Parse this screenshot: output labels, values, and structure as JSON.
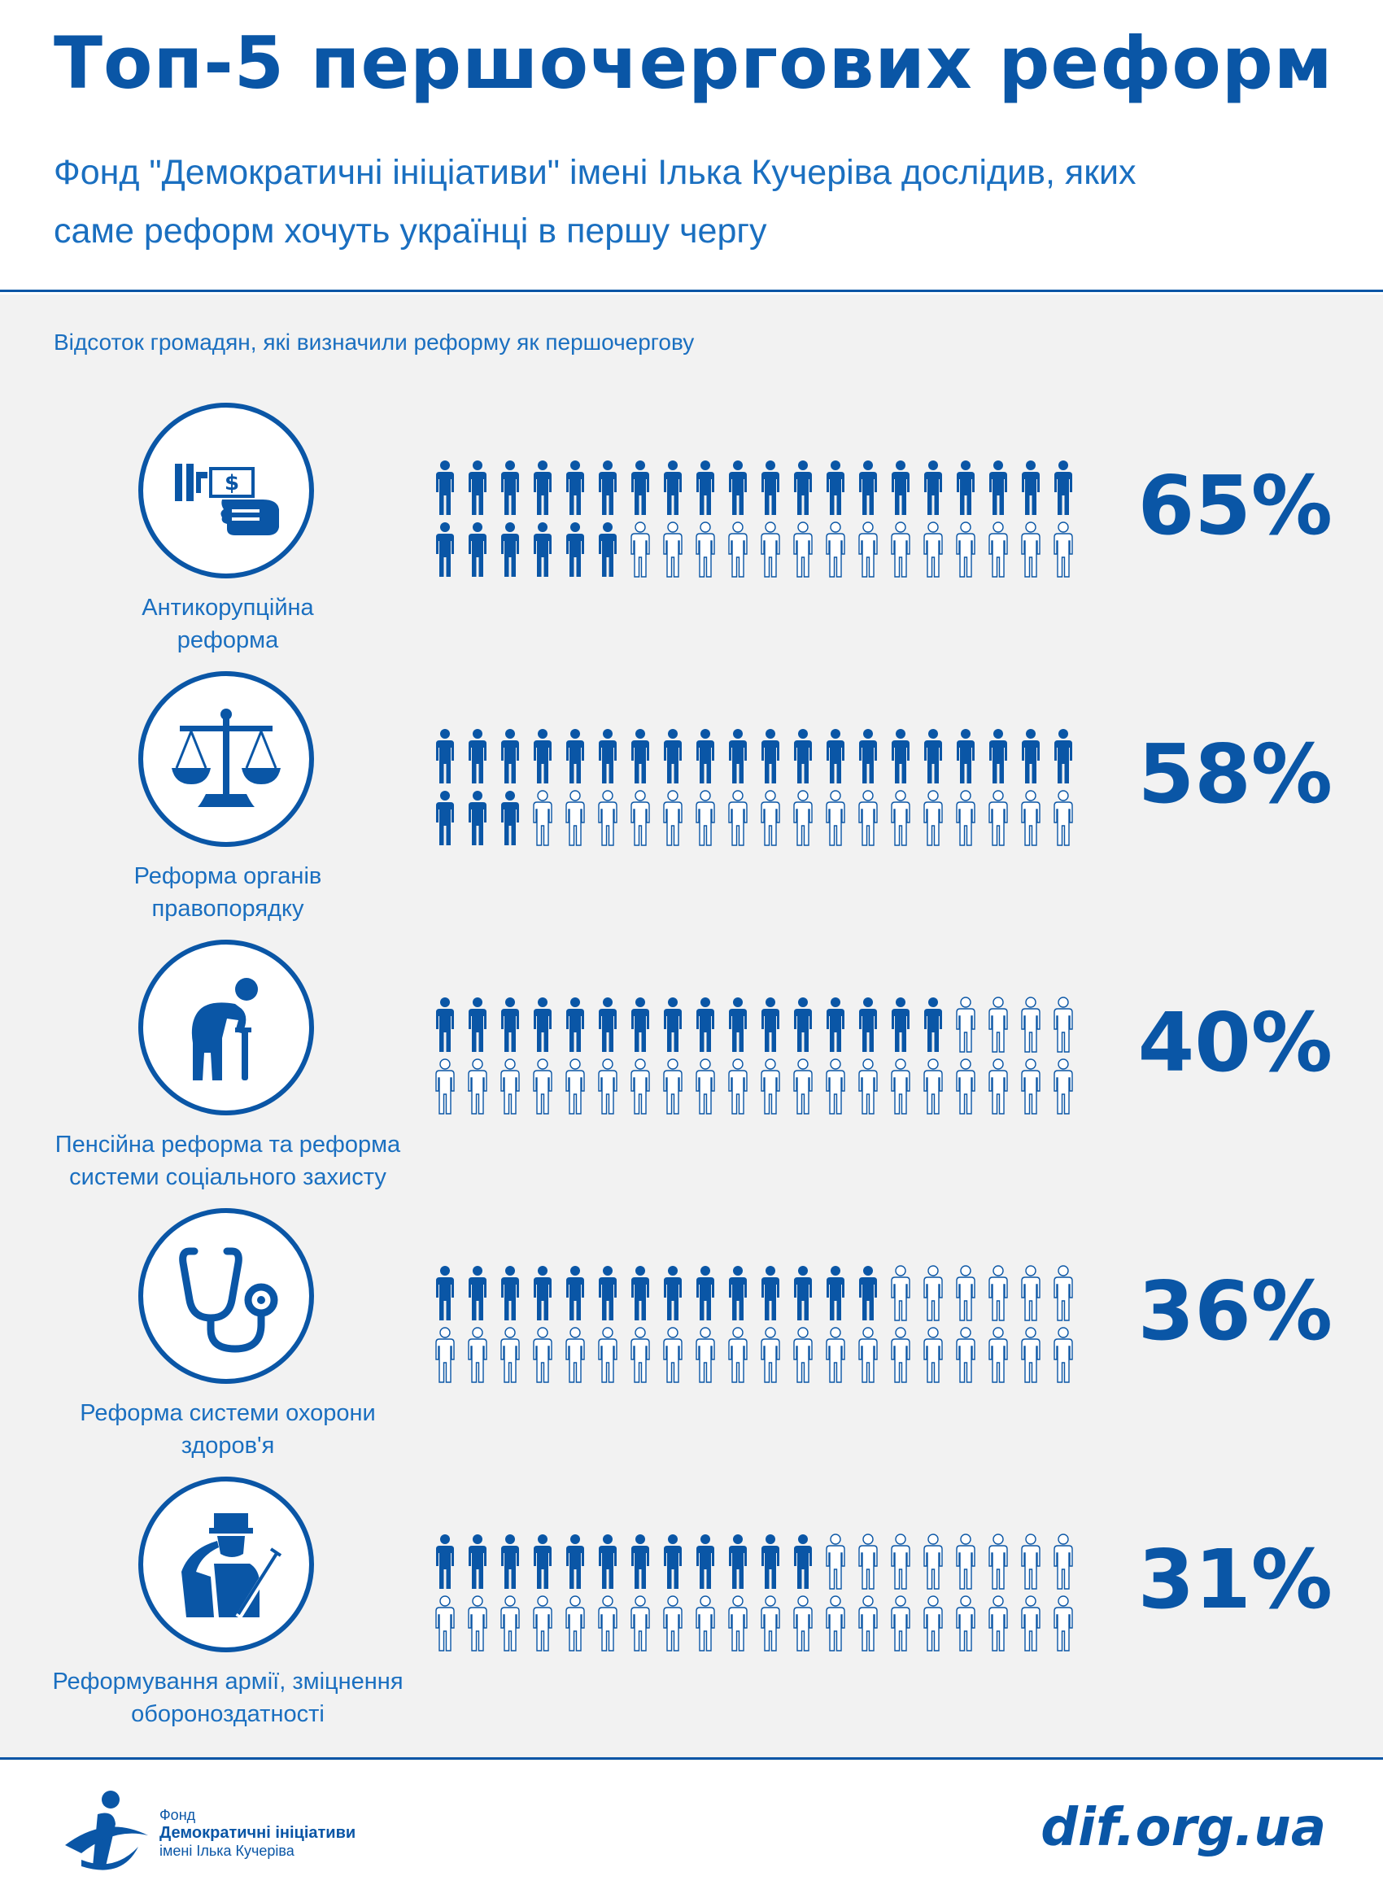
{
  "header": {
    "title": "Топ-5 першочергових реформ",
    "subtitle_line1": "Фонд \"Демократичні ініціативи\" імені Ілька Кучеріва дослідив, яких",
    "subtitle_line2": "саме реформ хочуть українці в першу чергу"
  },
  "colors": {
    "primary": "#0a56a6",
    "accent": "#1a6fc0",
    "panel": "#f2f2f2"
  },
  "chart_data": {
    "type": "pictograph",
    "title": "Відсоток громадян, які визначили реформу як першочергову",
    "unit_description": "40 figures per row (2 rows × 20 figures)",
    "categories": [
      "Антикорупційна реформа",
      "Реформа органів правопорядку",
      "Пенсійна реформа та реформа системи соціального захисту",
      "Реформа системи охорони здоров'я",
      "Реформування армії, зміцнення обороноздатності"
    ],
    "values": [
      65,
      58,
      40,
      36,
      31
    ],
    "total_figures": 40
  },
  "rows": [
    {
      "icon": "anticorruption-money-icon",
      "label_line1": "Антикорупційна",
      "label_line2": "реформа",
      "percent": "65%",
      "value": 65
    },
    {
      "icon": "scales-of-justice-icon",
      "label_line1": "Реформа органів",
      "label_line2": "правопорядку",
      "percent": "58%",
      "value": 58
    },
    {
      "icon": "elderly-person-icon",
      "label_line1": "Пенсійна реформа та реформа",
      "label_line2": "системи соціального захисту",
      "percent": "40%",
      "value": 40
    },
    {
      "icon": "stethoscope-icon",
      "label_line1": "Реформа системи охорони",
      "label_line2": "здоров'я",
      "percent": "36%",
      "value": 36
    },
    {
      "icon": "soldier-salute-icon",
      "label_line1": "Реформування армії, зміцнення",
      "label_line2": "обороноздатності",
      "percent": "31%",
      "value": 31
    }
  ],
  "footer": {
    "logo_line1": "Фонд",
    "logo_line2": "Демократичні ініціативи",
    "logo_line3": "імені Ілька Кучеріва",
    "site": "dif.org.ua"
  }
}
